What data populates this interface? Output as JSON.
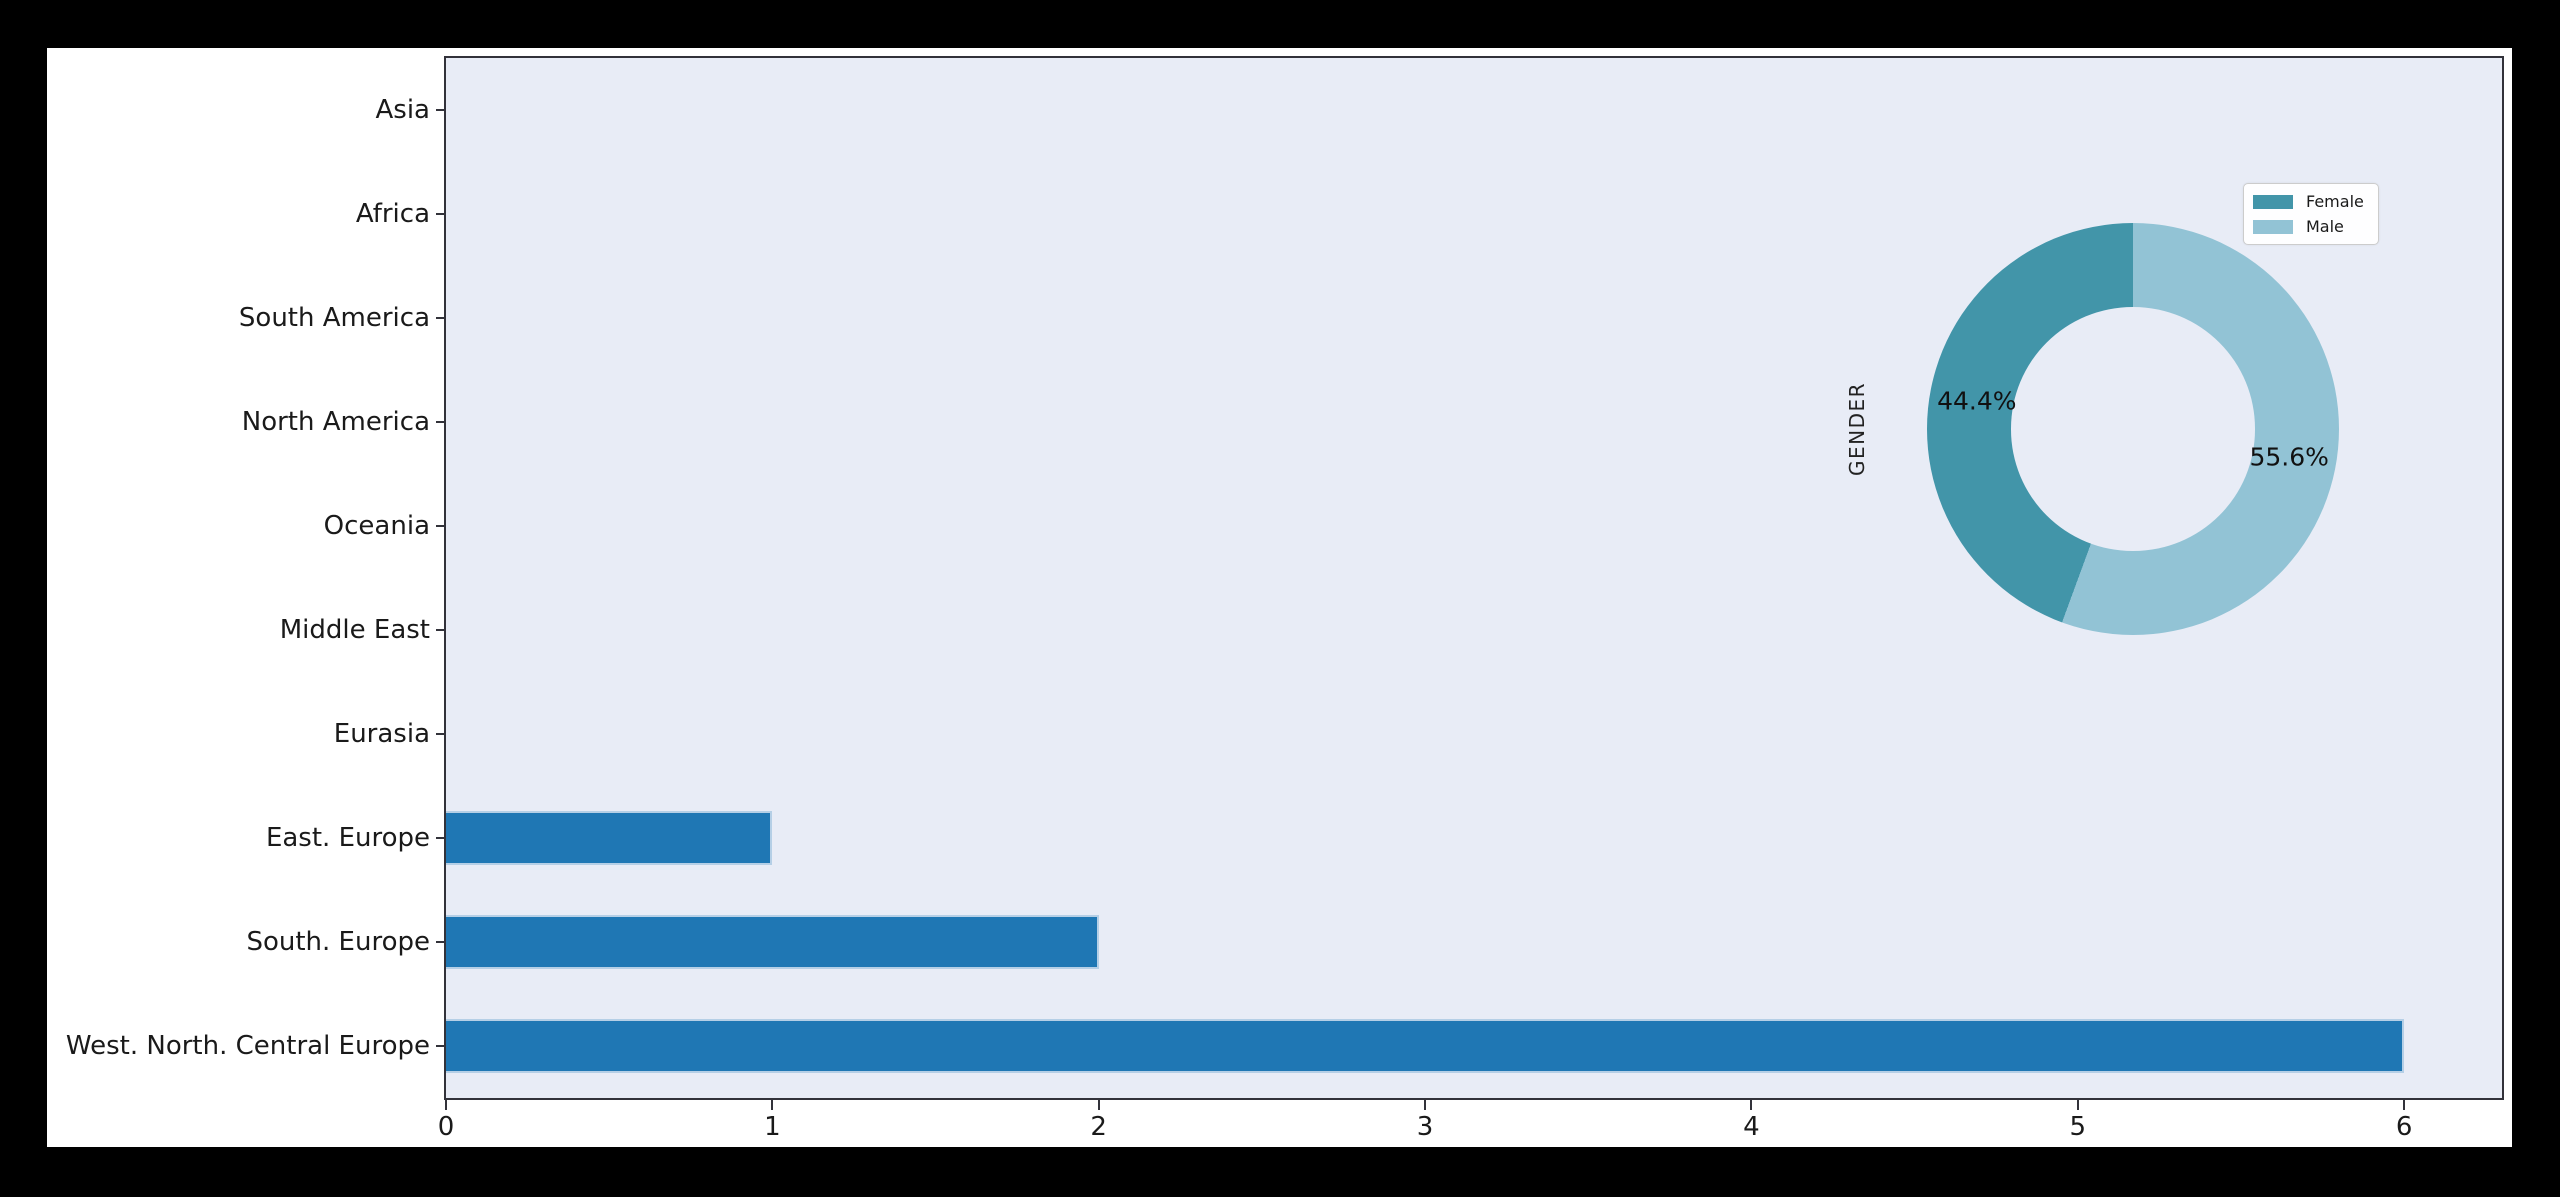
{
  "figure": {
    "canvas_background": "#ffffff",
    "outer_background": "#000000"
  },
  "chart_data": {
    "type": "bar",
    "orientation": "horizontal",
    "title": "",
    "xlabel": "",
    "ylabel": "",
    "categories": [
      "Asia",
      "Africa",
      "South America",
      "North America",
      "Oceania",
      "Middle East",
      "Eurasia",
      "East. Europe",
      "South. Europe",
      "West. North. Central Europe"
    ],
    "values": [
      0,
      0,
      0,
      0,
      0,
      0,
      0,
      1,
      2,
      6
    ],
    "x_ticks": [
      "0",
      "1",
      "2",
      "3",
      "4",
      "5",
      "6"
    ],
    "xlim": [
      0,
      6.3
    ],
    "grid": false,
    "bar_color": "#1f77b4",
    "plot_background": "#e8ecf6",
    "spine_color": "#32323a",
    "inset_donut": {
      "type": "pie",
      "axis_label": "GENDER",
      "hole_ratio": 0.59,
      "start_angle": "top, clockwise",
      "slices": [
        {
          "label": "Female",
          "pct": 44.4,
          "pct_label": "44.4%",
          "color": "#4295a9"
        },
        {
          "label": "Male",
          "pct": 55.6,
          "pct_label": "55.6%",
          "color": "#92c3d5"
        }
      ],
      "legend": {
        "position": "upper right",
        "entries": [
          "Female",
          "Male"
        ]
      }
    }
  }
}
